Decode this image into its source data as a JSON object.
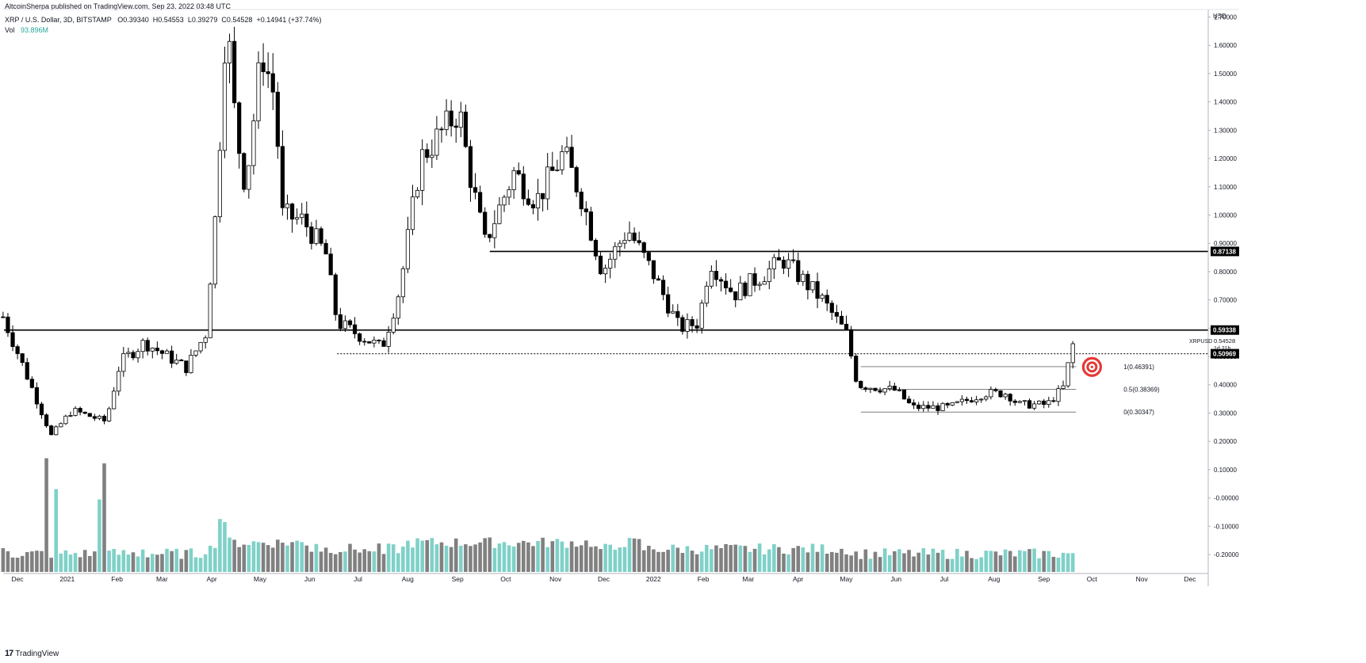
{
  "header": {
    "published": "AltcoinSherpa published on TradingView.com, Sep 23, 2022 03:48 UTC",
    "symbol": "XRP / U.S. Dollar, 3D, BITSTAMP",
    "open": "O0.39340",
    "high": "H0.54553",
    "low": "L0.39279",
    "close": "C0.54528",
    "change": "+0.14941 (+37.74%)",
    "vol_label": "Vol",
    "vol_value": "93.896M"
  },
  "footer": {
    "brand": "TradingView",
    "logo": "17"
  },
  "chart_data": {
    "type": "candlestick",
    "currency_label": "USD",
    "y_ticks": [
      "1.70000",
      "1.60000",
      "1.50000",
      "1.40000",
      "1.30000",
      "1.20000",
      "1.10000",
      "1.00000",
      "0.90000",
      "0.80000",
      "0.70000",
      "0.60000",
      "0.50000",
      "0.40000",
      "0.30000",
      "0.20000",
      "0.10000",
      "-0.00000",
      "-0.10000",
      "-0.20000"
    ],
    "x_ticks": [
      "Dec",
      "2021",
      "Feb",
      "Mar",
      "Apr",
      "May",
      "Jun",
      "Jul",
      "Aug",
      "Sep",
      "Oct",
      "Nov",
      "Dec",
      "2022",
      "Feb",
      "Mar",
      "Apr",
      "May",
      "Jun",
      "Jul",
      "Aug",
      "Sep",
      "Oct",
      "Nov",
      "Dec"
    ],
    "ylim": [
      -0.24,
      1.78
    ],
    "price_badges": [
      {
        "label": "0.87138",
        "value": 0.87138
      },
      {
        "label": "0.59338",
        "value": 0.59338
      },
      {
        "label": "0.50969",
        "value": 0.50969
      }
    ],
    "current": {
      "symbol": "XRPUSD",
      "price": "0.54528",
      "countdown": "1d 21h"
    },
    "fib_levels": [
      {
        "label": "1(0.46391)",
        "value": 0.46391
      },
      {
        "label": "0.5(0.38369)",
        "value": 0.38369
      },
      {
        "label": "0(0.30347)",
        "value": 0.30347
      }
    ],
    "horizontal_lines": [
      {
        "value": 0.87138,
        "from": "2021-09-25",
        "style": "solid"
      },
      {
        "value": 0.59338,
        "from": "2020-11-26",
        "style": "solid"
      },
      {
        "value": 0.50969,
        "from": "2021-06-22",
        "style": "dotted"
      }
    ],
    "target_marker": {
      "value": 0.463,
      "date": "2022-09-30"
    },
    "anchors": [
      {
        "date": "2020-11-26",
        "price": 0.64
      },
      {
        "date": "2020-12-26",
        "price": 0.22
      },
      {
        "date": "2021-01-08",
        "price": 0.31
      },
      {
        "date": "2021-01-29",
        "price": 0.27
      },
      {
        "date": "2021-02-07",
        "price": 0.48
      },
      {
        "date": "2021-02-22",
        "price": 0.55
      },
      {
        "date": "2021-03-20",
        "price": 0.46
      },
      {
        "date": "2021-04-01",
        "price": 0.58
      },
      {
        "date": "2021-04-08",
        "price": 1.05
      },
      {
        "date": "2021-04-14",
        "price": 1.72
      },
      {
        "date": "2021-04-20",
        "price": 1.3
      },
      {
        "date": "2021-04-26",
        "price": 1.1
      },
      {
        "date": "2021-05-06",
        "price": 1.58
      },
      {
        "date": "2021-05-14",
        "price": 1.42
      },
      {
        "date": "2021-05-19",
        "price": 1.0
      },
      {
        "date": "2021-06-01",
        "price": 0.98
      },
      {
        "date": "2021-06-15",
        "price": 0.86
      },
      {
        "date": "2021-06-22",
        "price": 0.62
      },
      {
        "date": "2021-07-20",
        "price": 0.53
      },
      {
        "date": "2021-07-31",
        "price": 0.74
      },
      {
        "date": "2021-08-13",
        "price": 1.2
      },
      {
        "date": "2021-09-06",
        "price": 1.37
      },
      {
        "date": "2021-09-12",
        "price": 1.16
      },
      {
        "date": "2021-09-22",
        "price": 0.9
      },
      {
        "date": "2021-10-10",
        "price": 1.15
      },
      {
        "date": "2021-10-24",
        "price": 1.05
      },
      {
        "date": "2021-11-10",
        "price": 1.22
      },
      {
        "date": "2021-11-22",
        "price": 1.05
      },
      {
        "date": "2021-12-04",
        "price": 0.8
      },
      {
        "date": "2021-12-20",
        "price": 0.95
      },
      {
        "date": "2022-01-05",
        "price": 0.79
      },
      {
        "date": "2022-01-21",
        "price": 0.6
      },
      {
        "date": "2022-02-02",
        "price": 0.62
      },
      {
        "date": "2022-02-09",
        "price": 0.84
      },
      {
        "date": "2022-02-24",
        "price": 0.72
      },
      {
        "date": "2022-03-27",
        "price": 0.84
      },
      {
        "date": "2022-04-20",
        "price": 0.7
      },
      {
        "date": "2022-05-05",
        "price": 0.58
      },
      {
        "date": "2022-05-12",
        "price": 0.4
      },
      {
        "date": "2022-06-05",
        "price": 0.38
      },
      {
        "date": "2022-06-15",
        "price": 0.32
      },
      {
        "date": "2022-07-08",
        "price": 0.32
      },
      {
        "date": "2022-07-30",
        "price": 0.37
      },
      {
        "date": "2022-08-13",
        "price": 0.37
      },
      {
        "date": "2022-08-20",
        "price": 0.33
      },
      {
        "date": "2022-09-07",
        "price": 0.33
      },
      {
        "date": "2022-09-17",
        "price": 0.39
      },
      {
        "date": "2022-09-23",
        "price": 0.545
      }
    ],
    "volume_spikes": [
      {
        "date": "2020-12-23",
        "rel": 0.95
      },
      {
        "date": "2020-12-29",
        "rel": 0.65
      },
      {
        "date": "2021-01-26",
        "rel": 0.55
      },
      {
        "date": "2021-01-29",
        "rel": 0.9
      },
      {
        "date": "2021-04-11",
        "rel": 0.36
      },
      {
        "date": "2021-04-14",
        "rel": 0.33
      }
    ]
  }
}
